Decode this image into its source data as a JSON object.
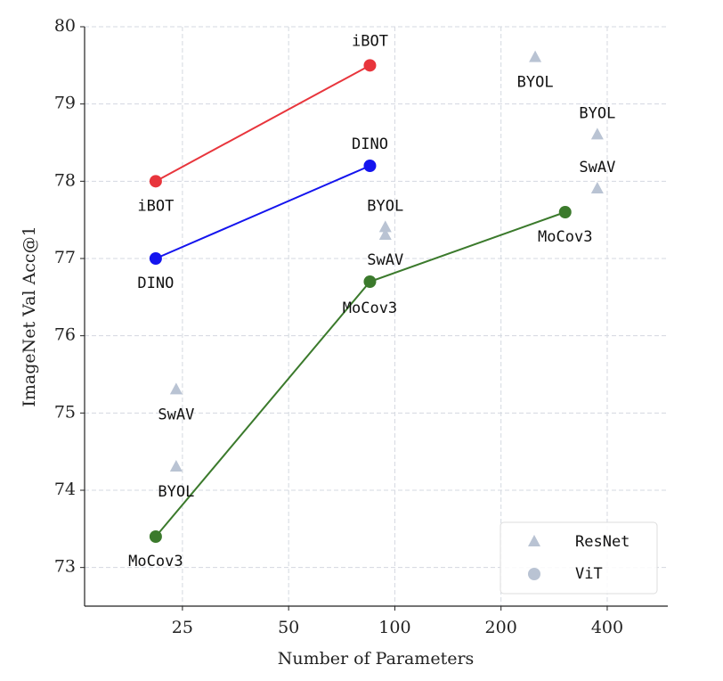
{
  "chart_data": {
    "type": "scatter",
    "xlabel": "Number of Parameters",
    "ylabel": "ImageNet Val Acc@1",
    "xscale": "log",
    "xlim": [
      13.2,
      594
    ],
    "xticks": [
      25,
      50,
      100,
      200,
      400
    ],
    "ylim": [
      72.5,
      80
    ],
    "yticks": [
      73,
      74,
      75,
      76,
      77,
      78,
      79,
      80
    ],
    "grid": true,
    "series": [
      {
        "name": "iBOT",
        "color": "#e8353c",
        "marker": "circle",
        "line": true,
        "x": [
          21,
          85
        ],
        "values": [
          78.0,
          79.5
        ]
      },
      {
        "name": "DINO",
        "color": "#1414ee",
        "marker": "circle",
        "line": true,
        "x": [
          21,
          85
        ],
        "values": [
          77.0,
          78.2
        ]
      },
      {
        "name": "MoCov3",
        "color": "#3b7a2c",
        "marker": "circle",
        "line": true,
        "x": [
          21,
          85,
          304
        ],
        "values": [
          73.4,
          76.7,
          77.6
        ]
      },
      {
        "color": "#b9c3d3",
        "marker": "triangle",
        "line": false,
        "x": [
          24,
          24,
          94,
          94,
          250,
          375,
          375
        ],
        "values": [
          75.3,
          74.3,
          77.4,
          77.3,
          79.6,
          78.6,
          77.9
        ],
        "labels": [
          "SwAV",
          "BYOL",
          "BYOL",
          "SwAV",
          "BYOL",
          "BYOL",
          "SwAV"
        ]
      }
    ],
    "legend_position": "lower right",
    "legend": [
      {
        "label": "ResNet",
        "marker": "triangle",
        "color": "#b9c3d3"
      },
      {
        "label": "ViT",
        "marker": "circle",
        "color": "#b9c3d3"
      }
    ]
  }
}
